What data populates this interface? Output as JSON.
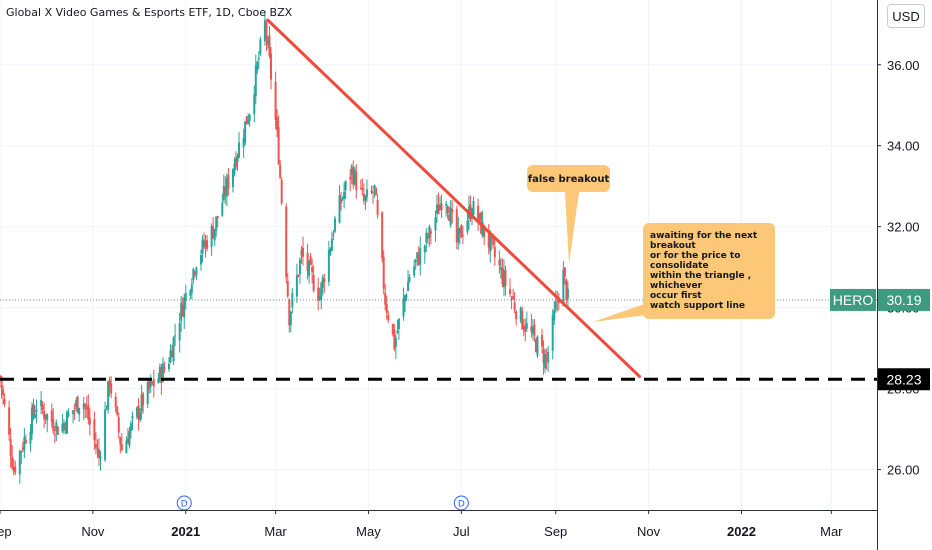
{
  "header": {
    "title": "Global X Video Games & Esports ETF, 1D, Cboe BZX",
    "currency": "USD"
  },
  "colors": {
    "up": "#26a69a",
    "down": "#ef5350",
    "trendline": "#f04a3a",
    "support": "#000000",
    "callout": "#fcc777",
    "ticker_badge": "#3d9b7e"
  },
  "chart_data": {
    "type": "candlestick",
    "x_ticks": [
      "Sep",
      "Nov",
      "2021",
      "Mar",
      "May",
      "Jul",
      "Sep",
      "Nov",
      "2022",
      "Mar"
    ],
    "y_ticks": [
      "26.00",
      "28.00",
      "30.00",
      "32.00",
      "34.00",
      "36.00"
    ],
    "ylim": [
      25.0,
      37.6
    ],
    "xlim": [
      "2020-09-01",
      "2022-03-31"
    ],
    "price_path": [
      [
        "2020-09-01",
        28.3
      ],
      [
        "2020-09-10",
        26.0
      ],
      [
        "2020-09-25",
        27.6
      ],
      [
        "2020-10-10",
        27.0
      ],
      [
        "2020-10-25",
        27.8
      ],
      [
        "2020-11-05",
        26.3
      ],
      [
        "2020-11-12",
        28.2
      ],
      [
        "2020-11-20",
        26.5
      ],
      [
        "2020-12-05",
        27.8
      ],
      [
        "2020-12-20",
        28.6
      ],
      [
        "2020-12-28",
        29.8
      ],
      [
        "2021-01-08",
        31.2
      ],
      [
        "2021-01-20",
        32.0
      ],
      [
        "2021-02-01",
        33.5
      ],
      [
        "2021-02-12",
        34.9
      ],
      [
        "2021-02-22",
        37.0
      ],
      [
        "2021-02-27",
        35.4
      ],
      [
        "2021-03-03",
        33.8
      ],
      [
        "2021-03-10",
        29.8
      ],
      [
        "2021-03-18",
        31.3
      ],
      [
        "2021-03-30",
        30.3
      ],
      [
        "2021-04-10",
        32.3
      ],
      [
        "2021-04-20",
        33.4
      ],
      [
        "2021-04-28",
        32.6
      ],
      [
        "2021-05-05",
        32.9
      ],
      [
        "2021-05-12",
        30.2
      ],
      [
        "2021-05-18",
        29.1
      ],
      [
        "2021-05-28",
        30.8
      ],
      [
        "2021-06-10",
        31.8
      ],
      [
        "2021-06-20",
        32.9
      ],
      [
        "2021-06-28",
        31.6
      ],
      [
        "2021-07-08",
        32.5
      ],
      [
        "2021-07-18",
        31.7
      ],
      [
        "2021-07-30",
        30.6
      ],
      [
        "2021-08-08",
        29.8
      ],
      [
        "2021-08-18",
        29.2
      ],
      [
        "2021-08-26",
        28.7
      ],
      [
        "2021-09-02",
        30.2
      ],
      [
        "2021-09-06",
        30.8
      ],
      [
        "2021-09-09",
        30.19
      ]
    ],
    "last_price": "30.19",
    "ticker": "HERO",
    "support_level": "28.23",
    "support_value": 28.23,
    "dividend_markers": [
      {
        "date": "2020-12-31",
        "label": "D"
      },
      {
        "date": "2021-07-01",
        "label": "D"
      }
    ],
    "annotations": {
      "trendline": {
        "from": [
          "2021-02-24",
          37.1
        ],
        "to": [
          "2021-10-26",
          28.3
        ]
      },
      "callout_1": "false breakout",
      "callout_2": [
        "awaiting for the next",
        "breakout",
        "or for the price to",
        "consolidate",
        "within the triangle ,",
        "whichever",
        "occur first",
        "watch support line"
      ]
    },
    "grid": true
  }
}
